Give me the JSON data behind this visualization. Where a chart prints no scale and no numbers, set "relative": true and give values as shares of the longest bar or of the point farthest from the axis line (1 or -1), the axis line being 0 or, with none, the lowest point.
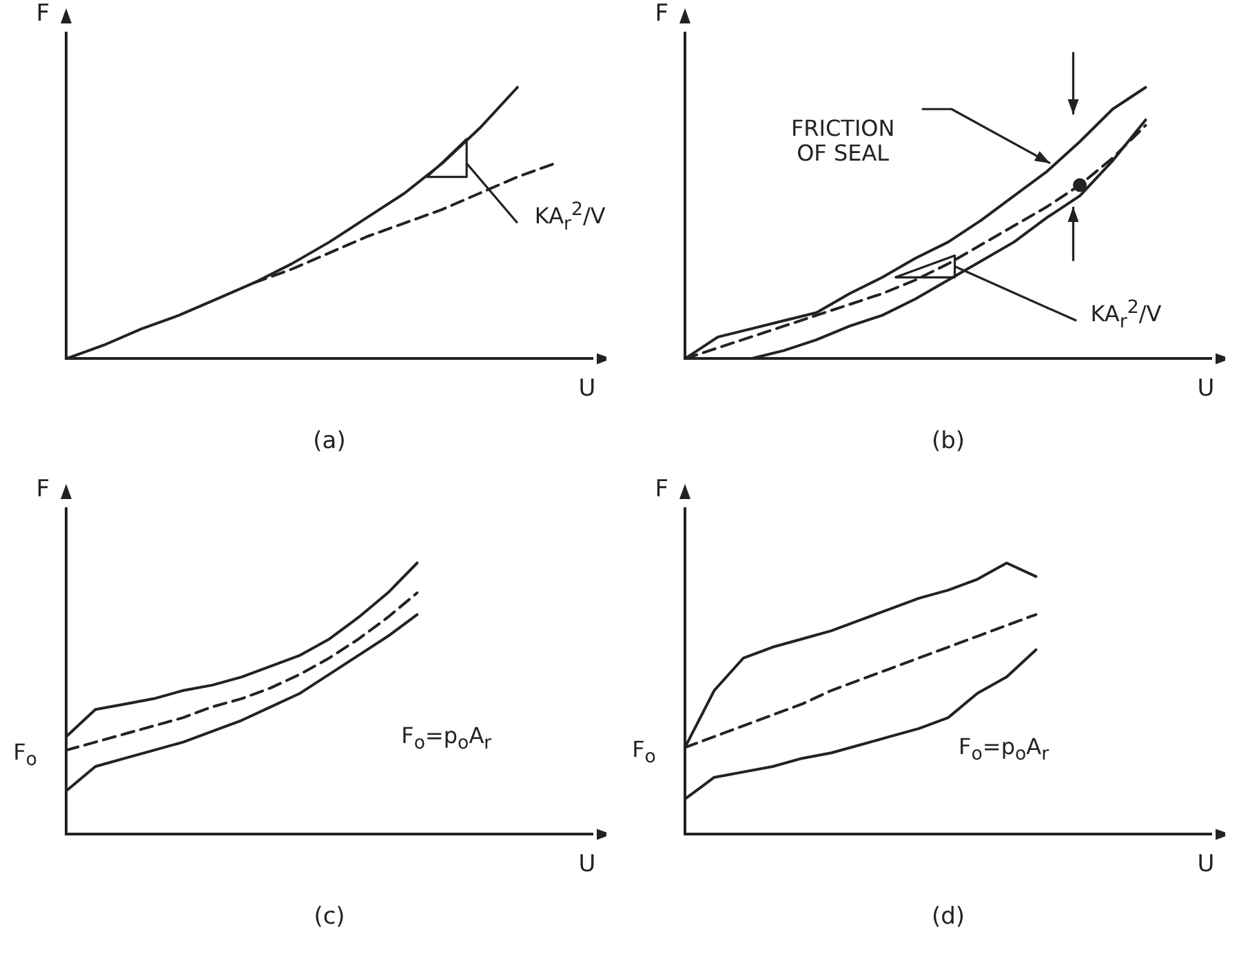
{
  "chart_data": [
    {
      "type": "line",
      "title": "(a)",
      "xlabel": "U",
      "ylabel": "F",
      "relative": true,
      "marker": "none",
      "categories": [
        null,
        null,
        null,
        null,
        null,
        null,
        null,
        null,
        null,
        null,
        null,
        null,
        null,
        null,
        null
      ],
      "series": [
        {
          "color": "#222222",
          "line_style": "solid",
          "values": [
            0,
            0.05,
            0.11,
            0.16,
            0.22,
            0.28,
            0.35,
            0.43,
            0.52,
            0.61,
            0.72,
            0.85,
            1,
            null,
            null
          ]
        },
        {
          "color": "#222222",
          "line_style": "dashed",
          "values": [
            null,
            null,
            null,
            null,
            null,
            0.28,
            0.33,
            0.39,
            0.45,
            0.5,
            0.55,
            0.61,
            0.67,
            0.72,
            null
          ]
        }
      ],
      "annotations": [
        "KA$_{r}$$^{2}$/V"
      ]
    },
    {
      "type": "line",
      "title": "(b)",
      "xlabel": "U",
      "ylabel": "F",
      "relative": true,
      "marker": "none",
      "categories": [
        null,
        null,
        null,
        null,
        null,
        null,
        null,
        null,
        null,
        null,
        null,
        null,
        null,
        null,
        null,
        null,
        null
      ],
      "series": [
        {
          "color": "#222222",
          "line_style": "solid",
          "values": [
            0,
            0.08,
            0.11,
            0.14,
            0.17,
            0.24,
            0.3,
            0.37,
            0.43,
            0.51,
            0.6,
            0.69,
            0.8,
            0.92,
            1,
            null,
            null
          ]
        },
        {
          "color": "#222222",
          "line_style": "solid",
          "values": [
            0,
            0,
            0,
            0.03,
            0.07,
            0.12,
            0.16,
            0.22,
            0.29,
            0.36,
            0.43,
            0.52,
            0.6,
            0.73,
            0.88,
            null,
            null
          ]
        },
        {
          "color": "#222222",
          "line_style": "dashed",
          "values": [
            0,
            0.04,
            0.08,
            0.12,
            0.16,
            0.2,
            0.24,
            0.29,
            0.35,
            0.42,
            0.49,
            0.56,
            0.64,
            0.74,
            0.86,
            null,
            null
          ]
        }
      ],
      "annotations": [
        "FRICTION OF SEAL",
        "KA$_{r}$$^{2}$/V"
      ]
    },
    {
      "type": "line",
      "title": "(c)",
      "xlabel": "U",
      "ylabel": "F",
      "relative": true,
      "marker": "none",
      "categories": [
        null,
        null,
        null,
        null,
        null,
        null,
        null,
        null,
        null,
        null,
        null,
        null,
        null,
        null,
        null,
        null,
        null,
        null,
        null
      ],
      "series": [
        {
          "color": "#222222",
          "line_style": "solid",
          "values": [
            0.36,
            0.46,
            0.48,
            0.5,
            0.53,
            0.55,
            0.58,
            0.62,
            0.66,
            0.72,
            0.8,
            0.89,
            1,
            null,
            null,
            null,
            null,
            null,
            null
          ]
        },
        {
          "color": "#222222",
          "line_style": "solid",
          "values": [
            0.16,
            0.25,
            0.28,
            0.31,
            0.34,
            0.38,
            0.42,
            0.47,
            0.52,
            0.59,
            0.66,
            0.73,
            0.81,
            null,
            null,
            null,
            null,
            null,
            null
          ]
        },
        {
          "color": "#222222",
          "line_style": "dashed",
          "values": [
            0.31,
            0.34,
            0.37,
            0.4,
            0.43,
            0.47,
            0.5,
            0.54,
            0.59,
            0.65,
            0.72,
            0.8,
            0.89,
            null,
            null,
            null,
            null,
            null,
            null
          ]
        }
      ],
      "annotations": [
        "F$_{o}$=p$_{o}$A$_{r}$",
        "F$_{o}$"
      ]
    },
    {
      "type": "line",
      "title": "(d)",
      "xlabel": "U",
      "ylabel": "F",
      "relative": true,
      "marker": "none",
      "categories": [
        null,
        null,
        null,
        null,
        null,
        null,
        null,
        null,
        null,
        null,
        null,
        null,
        null,
        null,
        null,
        null,
        null,
        null,
        null
      ],
      "series": [
        {
          "color": "#222222",
          "line_style": "solid",
          "values": [
            0.32,
            0.53,
            0.65,
            0.69,
            0.72,
            0.75,
            0.79,
            0.83,
            0.87,
            0.9,
            0.94,
            1,
            0.95,
            null,
            null,
            null,
            null,
            null,
            null
          ]
        },
        {
          "color": "#222222",
          "line_style": "solid",
          "values": [
            0.13,
            0.21,
            0.23,
            0.25,
            0.28,
            0.3,
            0.33,
            0.36,
            0.39,
            0.43,
            0.52,
            0.58,
            0.68,
            null,
            null,
            null,
            null,
            null,
            null
          ]
        },
        {
          "color": "#222222",
          "line_style": "dashed",
          "values": [
            0.32,
            0.36,
            0.4,
            0.44,
            0.48,
            0.53,
            0.57,
            0.61,
            0.65,
            0.69,
            0.73,
            0.77,
            0.81,
            null,
            null,
            null,
            null,
            null,
            null
          ]
        }
      ],
      "annotations": [
        "F$_{o}$=p$_{o}$A$_{r}$",
        "F$_{o}$"
      ]
    }
  ]
}
